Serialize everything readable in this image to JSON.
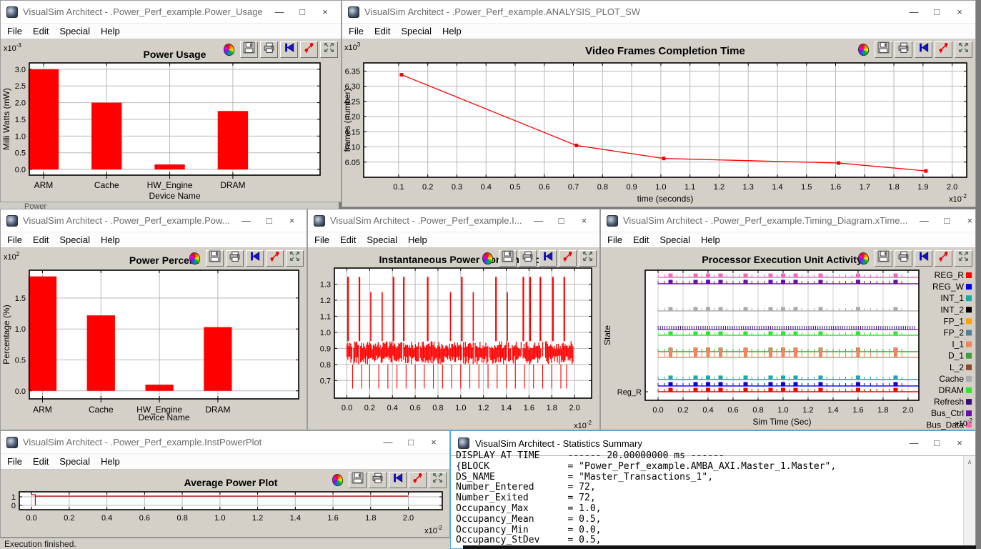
{
  "ui": {
    "minimize_glyph": "—",
    "maximize_glyph": "□",
    "close_glyph": "×",
    "scroll_up_glyph": "∧",
    "multiplier_prefix": "x10",
    "toolbar_icons": [
      "palette",
      "save",
      "print",
      "reset-view",
      "format-plot",
      "fullscreen"
    ]
  },
  "menu": [
    "File",
    "Edit",
    "Special",
    "Help"
  ],
  "background_window": {
    "partial_title": "Power"
  },
  "status_bar": {
    "text": "Execution finished."
  },
  "windows": [
    {
      "id": "power_usage",
      "title": "VisualSim Architect - .Power_Perf_example.Power_Usage",
      "chart": "power_usage"
    },
    {
      "id": "analysis",
      "title": "VisualSim Architect - .Power_Perf_example.ANALYSIS_PLOT_SW",
      "chart": "video_frames"
    },
    {
      "id": "power_percent",
      "title": "VisualSim Architect - .Power_Perf_example.Pow...",
      "chart": "power_percent"
    },
    {
      "id": "inst_power",
      "title": "VisualSim Architect - .Power_Perf_example.I...",
      "chart": "inst_power"
    },
    {
      "id": "timing",
      "title": "VisualSim Architect - .Power_Perf_example.Timing_Diagram.xTime...",
      "chart": "timing"
    },
    {
      "id": "avg_power",
      "title": "VisualSim Architect - .Power_Perf_example.InstPowerPlot",
      "chart": "avg_power"
    }
  ],
  "stats_window": {
    "title": "VisualSim Architect - Statistics Summary",
    "lines": [
      "DISPLAY AT TIME     ------ 20.00000000 ms ------",
      "{BLOCK              = \"Power_Perf_example.AMBA_AXI.Master_1.Master\",",
      "DS_NAME             = \"Master_Transactions_1\",",
      "Number_Entered      = 72,",
      "Number_Exited       = 72,",
      "Occupancy_Max       = 1.0,",
      "Occupancy_Mean      = 0.5,",
      "Occupancy_Min       = 0.0,",
      "Occupancy_StDev     = 0.5,"
    ]
  },
  "chart_data": [
    {
      "id": "power_usage",
      "type": "bar",
      "title": "Power Usage",
      "xlabel": "Device Name",
      "ylabel": "Milli Watts (mW)",
      "y_multiplier_exp": "-3",
      "categories": [
        "ARM",
        "Cache",
        "HW_Engine",
        "DRAM"
      ],
      "values": [
        3.0,
        2.0,
        0.15,
        1.75
      ],
      "yticks": [
        "0.0",
        "0.5",
        "1.0",
        "1.5",
        "2.0",
        "2.5",
        "3.0"
      ],
      "ylim": [
        -0.17,
        3.19
      ],
      "color": "#ff0000"
    },
    {
      "id": "video_frames",
      "type": "line",
      "title": "Video Frames Completion Time",
      "xlabel": "time (seconds)",
      "ylabel": "frames (number)",
      "x_multiplier_exp": "-2",
      "y_multiplier_exp": "3",
      "x": [
        0.11,
        0.71,
        1.01,
        1.61,
        1.91
      ],
      "y": [
        6.338,
        6.105,
        6.062,
        6.047,
        6.021
      ],
      "xticks": [
        "0.1",
        "0.2",
        "0.3",
        "0.4",
        "0.5",
        "0.6",
        "0.7",
        "0.8",
        "0.9",
        "1.0",
        "1.1",
        "1.2",
        "1.3",
        "1.4",
        "1.5",
        "1.6",
        "1.7",
        "1.8",
        "1.9",
        "2.0"
      ],
      "yticks": [
        "6.05",
        "6.10",
        "6.15",
        "6.20",
        "6.25",
        "6.30",
        "6.35"
      ],
      "xlim": [
        -0.02,
        2.05
      ],
      "ylim": [
        6.0,
        6.377
      ],
      "color": "#ff0000"
    },
    {
      "id": "power_percent",
      "type": "bar",
      "title": "Power Percent",
      "xlabel": "Device Name",
      "ylabel": "Percentage (%)",
      "y_multiplier_exp": "2",
      "categories": [
        "ARM",
        "Cache",
        "HW_Engine",
        "DRAM"
      ],
      "values": [
        1.85,
        1.22,
        0.1,
        1.03
      ],
      "yticks": [
        "0.0",
        "0.5",
        "1.0",
        "1.5"
      ],
      "ylim": [
        -0.13,
        1.95
      ],
      "color": "#ff0000"
    },
    {
      "id": "inst_power",
      "type": "waveform",
      "title": "Instantaneous Power Consumption",
      "x_multiplier_exp": "-2",
      "xticks": [
        "0.0",
        "0.2",
        "0.4",
        "0.6",
        "0.8",
        "1.0",
        "1.2",
        "1.4",
        "1.6",
        "1.8",
        "2.0"
      ],
      "yticks": [
        "0.7",
        "0.8",
        "0.9",
        "1.0",
        "1.1",
        "1.2",
        "1.3"
      ],
      "xlim": [
        -0.11,
        2.15
      ],
      "ylim": [
        0.59,
        1.4
      ],
      "band": [
        0.8,
        0.945
      ],
      "spikes_high": {
        "value": 1.345,
        "xs": [
          0.01,
          0.11,
          0.41,
          0.5,
          0.71,
          1.01,
          1.31,
          1.55,
          1.61,
          1.7,
          1.81,
          1.91
        ]
      },
      "spikes_mid": {
        "value": 1.25,
        "xs": [
          0.21,
          0.31,
          0.91,
          1.11,
          1.41
        ]
      },
      "spikes_low": {
        "value": 0.65,
        "xs": [
          0.05,
          0.13,
          0.2,
          0.28,
          0.36,
          0.44,
          0.52,
          0.6,
          0.68,
          0.76,
          0.84,
          0.92,
          1.0,
          1.08,
          1.16,
          1.24,
          1.32,
          1.4,
          1.48,
          1.56,
          1.64,
          1.72,
          1.8,
          1.88,
          1.93
        ]
      },
      "color": "#ff0000"
    },
    {
      "id": "timing",
      "type": "timing",
      "title": "Processor Execution Unit Activity",
      "xlabel": "Sim Time (Sec)",
      "ylabel": "State",
      "x_multiplier_exp": "-2",
      "first_ytick_label": "Reg_R",
      "xticks": [
        "0.0",
        "0.2",
        "0.4",
        "0.6",
        "0.8",
        "1.0",
        "1.2",
        "1.4",
        "1.6",
        "1.8",
        "2.0"
      ],
      "xlim": [
        -0.103,
        2.086
      ],
      "legend": [
        {
          "label": "REG_R",
          "color": "#ff0000"
        },
        {
          "label": "REG_W",
          "color": "#0000ee"
        },
        {
          "label": "INT_1",
          "color": "#1ea8a8"
        },
        {
          "label": "INT_2",
          "color": "#000000"
        },
        {
          "label": "FP_1",
          "color": "#ffa200"
        },
        {
          "label": "FP_2",
          "color": "#53808f"
        },
        {
          "label": "I_1",
          "color": "#f4845f"
        },
        {
          "label": "D_1",
          "color": "#3f9e3f"
        },
        {
          "label": "L_2",
          "color": "#8b4a2b"
        },
        {
          "label": "Cache",
          "color": "#ababab"
        },
        {
          "label": "DRAM",
          "color": "#2ee62e"
        },
        {
          "label": "Refresh",
          "color": "#3a0a78"
        },
        {
          "label": "Bus_Ctrl",
          "color": "#6a0dad"
        },
        {
          "label": "Bus_Data",
          "color": "#ff66b8"
        }
      ],
      "traces": [
        {
          "label": "Bus_Data",
          "color": "#ff66b8",
          "pos": 0.055,
          "style": "marks"
        },
        {
          "label": "Bus_Ctrl",
          "color": "#6a0dad",
          "pos": 0.104,
          "style": "marks"
        },
        {
          "label": "Cache",
          "color": "#ababab",
          "pos": 0.313,
          "style": "marks"
        },
        {
          "label": "Refresh",
          "color": "#3a0a78",
          "pos": 0.456,
          "style": "comb"
        },
        {
          "label": "DRAM",
          "color": "#2ee62e",
          "pos": 0.5,
          "style": "marks"
        },
        {
          "label": "D_1",
          "color": "#3f9e3f",
          "pos": 0.626,
          "style": "marks"
        },
        {
          "label": "I_1",
          "color": "#f4845f",
          "pos": 0.67,
          "style": "tall"
        },
        {
          "label": "INT_1",
          "color": "#1ea8a8",
          "pos": 0.84,
          "style": "marks"
        },
        {
          "label": "REG_W",
          "color": "#0000ee",
          "pos": 0.89,
          "style": "marks"
        },
        {
          "label": "REG_R",
          "color": "#ff0000",
          "pos": 0.934,
          "style": "marks"
        }
      ],
      "mark_xs": [
        0.1,
        0.3,
        0.4,
        0.5,
        0.7,
        0.9,
        1.0,
        1.1,
        1.3,
        1.6,
        1.9
      ],
      "tick_step": 0.05
    },
    {
      "id": "avg_power",
      "type": "step",
      "title": "Average Power Plot",
      "x_multiplier_exp": "-2",
      "xticks": [
        "0.0",
        "0.2",
        "0.4",
        "0.6",
        "0.8",
        "1.0",
        "1.2",
        "1.4",
        "1.6",
        "1.8",
        "2.0"
      ],
      "yticks": [
        "1",
        "0"
      ],
      "ytick_vals": [
        1,
        0
      ],
      "xlim": [
        -0.065,
        2.18
      ],
      "ylim": [
        -0.5,
        1.58
      ],
      "path": [
        [
          0,
          1.25
        ],
        [
          0.02,
          1.25
        ],
        [
          0.02,
          0.0
        ],
        [
          0.02,
          1.08
        ],
        [
          2.0,
          1.08
        ]
      ],
      "color": "#cc0000"
    }
  ]
}
